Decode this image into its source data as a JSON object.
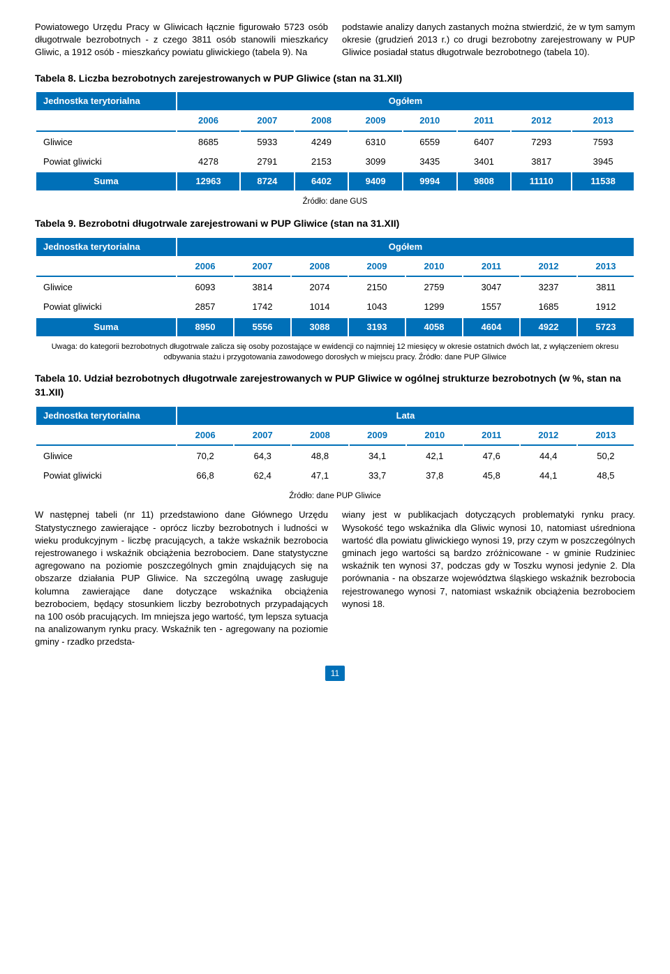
{
  "intro": {
    "left": "Powiatowego Urzędu Pracy w Gliwicach łącznie figurowało 5723 osób długotrwale bezrobotnych - z czego 3811 osób stanowili mieszkańcy Gliwic, a 1912 osób - mieszkańcy powiatu gliwickiego (tabela 9). Na",
    "right": "podstawie analizy danych zastanych można stwierdzić, że w tym samym okresie (grudzień 2013 r.) co drugi bezrobotny zarejestrowany w PUP Gliwice posiadał status długotrwale bezrobotnego (tabela 10)."
  },
  "table8": {
    "title": "Tabela 8. Liczba bezrobotnych zarejestrowanych w PUP Gliwice (stan na 31.XII)",
    "col_header_left": "Jednostka terytorialna",
    "col_header_right": "Ogółem",
    "years": [
      "2006",
      "2007",
      "2008",
      "2009",
      "2010",
      "2011",
      "2012",
      "2013"
    ],
    "rows": [
      {
        "label": "Gliwice",
        "vals": [
          "8685",
          "5933",
          "4249",
          "6310",
          "6559",
          "6407",
          "7293",
          "7593"
        ]
      },
      {
        "label": "Powiat gliwicki",
        "vals": [
          "4278",
          "2791",
          "2153",
          "3099",
          "3435",
          "3401",
          "3817",
          "3945"
        ]
      }
    ],
    "sum": {
      "label": "Suma",
      "vals": [
        "12963",
        "8724",
        "6402",
        "9409",
        "9994",
        "9808",
        "11110",
        "11538"
      ]
    },
    "source": "Źródło: dane GUS"
  },
  "table9": {
    "title": "Tabela 9. Bezrobotni długotrwale zarejestrowani w PUP Gliwice (stan na 31.XII)",
    "col_header_left": "Jednostka terytorialna",
    "col_header_right": "Ogółem",
    "years": [
      "2006",
      "2007",
      "2008",
      "2009",
      "2010",
      "2011",
      "2012",
      "2013"
    ],
    "rows": [
      {
        "label": "Gliwice",
        "vals": [
          "6093",
          "3814",
          "2074",
          "2150",
          "2759",
          "3047",
          "3237",
          "3811"
        ]
      },
      {
        "label": "Powiat gliwicki",
        "vals": [
          "2857",
          "1742",
          "1014",
          "1043",
          "1299",
          "1557",
          "1685",
          "1912"
        ]
      }
    ],
    "sum": {
      "label": "Suma",
      "vals": [
        "8950",
        "5556",
        "3088",
        "3193",
        "4058",
        "4604",
        "4922",
        "5723"
      ]
    },
    "note": "Uwaga: do kategorii bezrobotnych długotrwale zalicza się osoby pozostające w ewidencji co najmniej 12 miesięcy w okresie ostatnich dwóch lat, z wyłączeniem okresu odbywania stażu i przygotowania zawodowego dorosłych w miejscu pracy. Źródło: dane PUP Gliwice"
  },
  "table10": {
    "title": "Tabela 10. Udział bezrobotnych długotrwale zarejestrowanych w PUP Gliwice w ogólnej strukturze bezrobotnych (w %, stan na 31.XII)",
    "col_header_left": "Jednostka terytorialna",
    "col_header_right": "Lata",
    "years": [
      "2006",
      "2007",
      "2008",
      "2009",
      "2010",
      "2011",
      "2012",
      "2013"
    ],
    "rows": [
      {
        "label": "Gliwice",
        "vals": [
          "70,2",
          "64,3",
          "48,8",
          "34,1",
          "42,1",
          "47,6",
          "44,4",
          "50,2"
        ]
      },
      {
        "label": "Powiat gliwicki",
        "vals": [
          "66,8",
          "62,4",
          "47,1",
          "33,7",
          "37,8",
          "45,8",
          "44,1",
          "48,5"
        ]
      }
    ],
    "source": "Źródło: dane PUP Gliwice"
  },
  "outro": {
    "left": "W następnej tabeli (nr 11) przedstawiono dane Głównego Urzędu Statystycznego zawierające - oprócz liczby bezrobotnych i ludności w wieku produkcyjnym - liczbę pracujących, a także wskaźnik bezrobocia rejestrowanego i wskaźnik obciążenia bezrobociem. Dane statystyczne agregowano na poziomie poszczególnych gmin znajdujących się na obszarze działania PUP Gliwice. Na szczególną uwagę zasługuje kolumna zawierające dane dotyczące wskaźnika obciążenia bezrobociem, będący stosunkiem liczby bezrobotnych przypadających na 100 osób pracujących. Im mniejsza jego wartość, tym lepsza sytuacja na analizowanym rynku pracy. Wskaźnik ten - agregowany na poziomie gminy - rzadko przedsta-",
    "right": "wiany jest w publikacjach dotyczących problematyki rynku pracy. Wysokość tego wskaźnika dla Gliwic wynosi 10, natomiast uśredniona wartość dla powiatu gliwickiego wynosi 19, przy czym w poszczególnych gminach jego wartości są bardzo zróżnicowane - w gminie Rudziniec wskaźnik ten wynosi 37, podczas gdy w Toszku wynosi jedynie 2. Dla porównania - na obszarze województwa śląskiego wskaźnik bezrobocia rejestrowanego wynosi 7, natomiast wskaźnik obciążenia bezrobociem wynosi 18."
  },
  "page_number": "11",
  "colors": {
    "primary": "#0070b8",
    "text": "#000000",
    "bg": "#ffffff"
  }
}
